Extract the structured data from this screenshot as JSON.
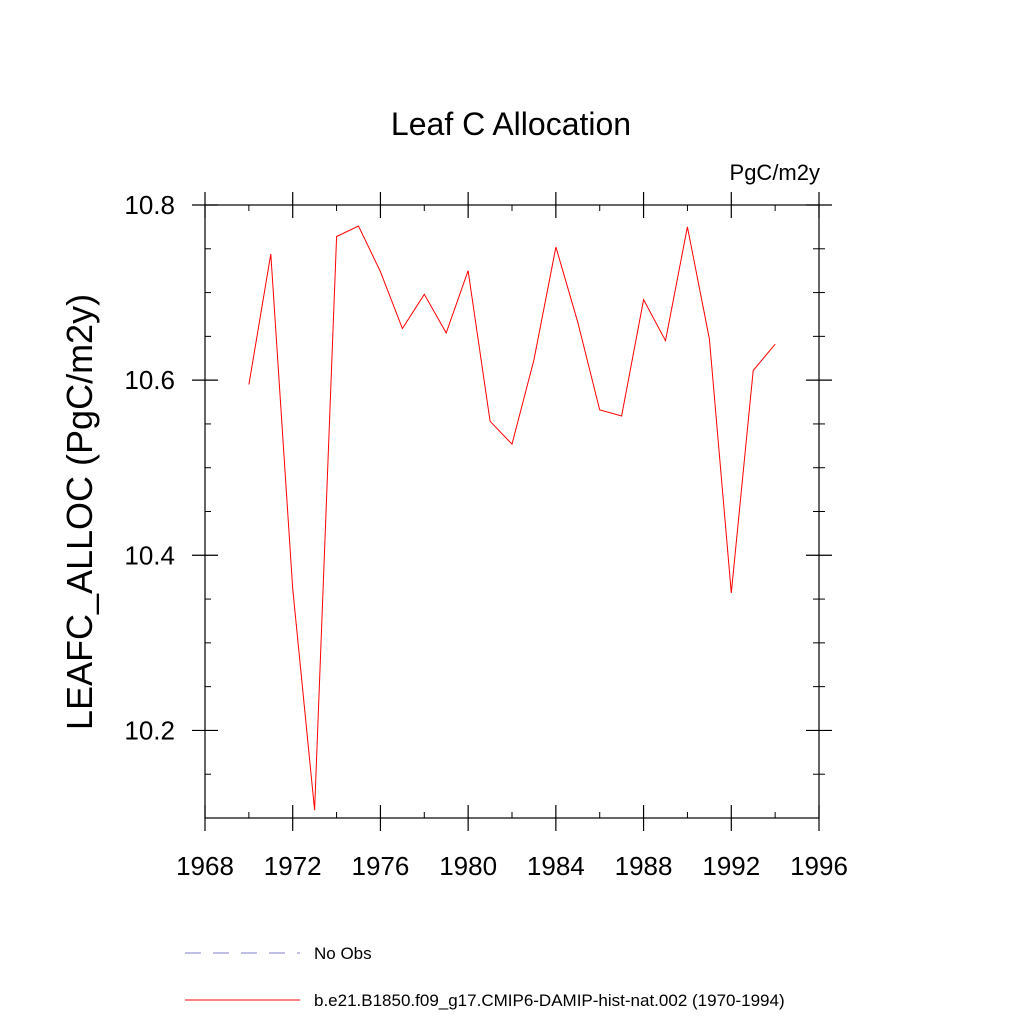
{
  "chart_data": {
    "type": "line",
    "title": "Leaf C Allocation",
    "units": "PgC/m2y",
    "ylabel": "LEAFC_ALLOC  (PgC/m2y)",
    "xlabel": "",
    "xlim": [
      1968,
      1996
    ],
    "ylim": [
      10.1,
      10.8
    ],
    "x_major_ticks": [
      1968,
      1972,
      1976,
      1980,
      1984,
      1988,
      1992,
      1996
    ],
    "x_minor_ticks": [
      1970,
      1974,
      1978,
      1982,
      1986,
      1990,
      1994
    ],
    "y_major_ticks": [
      10.2,
      10.4,
      10.6,
      10.8
    ],
    "y_minor_ticks": [
      10.15,
      10.25,
      10.3,
      10.35,
      10.45,
      10.5,
      10.55,
      10.65,
      10.7,
      10.75
    ],
    "x_tick_labels": [
      "1968",
      "1972",
      "1976",
      "1980",
      "1984",
      "1988",
      "1992",
      "1996"
    ],
    "y_tick_labels": [
      "10.2",
      "10.4",
      "10.6",
      "10.8"
    ],
    "grid": false,
    "legend_position": "bottom",
    "series": [
      {
        "name": "b.e21.B1850.f09_g17.CMIP6-DAMIP-hist-nat.002 (1970-1994)",
        "color": "#ff0000",
        "dash": "solid",
        "x": [
          1970,
          1971,
          1972,
          1973,
          1974,
          1975,
          1976,
          1977,
          1978,
          1979,
          1980,
          1981,
          1982,
          1983,
          1984,
          1985,
          1986,
          1987,
          1988,
          1989,
          1990,
          1991,
          1992,
          1993,
          1994
        ],
        "y": [
          10.595,
          10.744,
          10.362,
          10.109,
          10.764,
          10.776,
          10.724,
          10.659,
          10.698,
          10.654,
          10.725,
          10.553,
          10.527,
          10.623,
          10.752,
          10.666,
          10.566,
          10.559,
          10.692,
          10.645,
          10.775,
          10.647,
          10.357,
          10.611,
          10.641
        ]
      }
    ],
    "legend": [
      {
        "label": "No Obs",
        "color": "#8080c8",
        "dash": "dashed"
      },
      {
        "label": "b.e21.B1850.f09_g17.CMIP6-DAMIP-hist-nat.002 (1970-1994)",
        "color": "#ff0000",
        "dash": "solid"
      }
    ]
  }
}
